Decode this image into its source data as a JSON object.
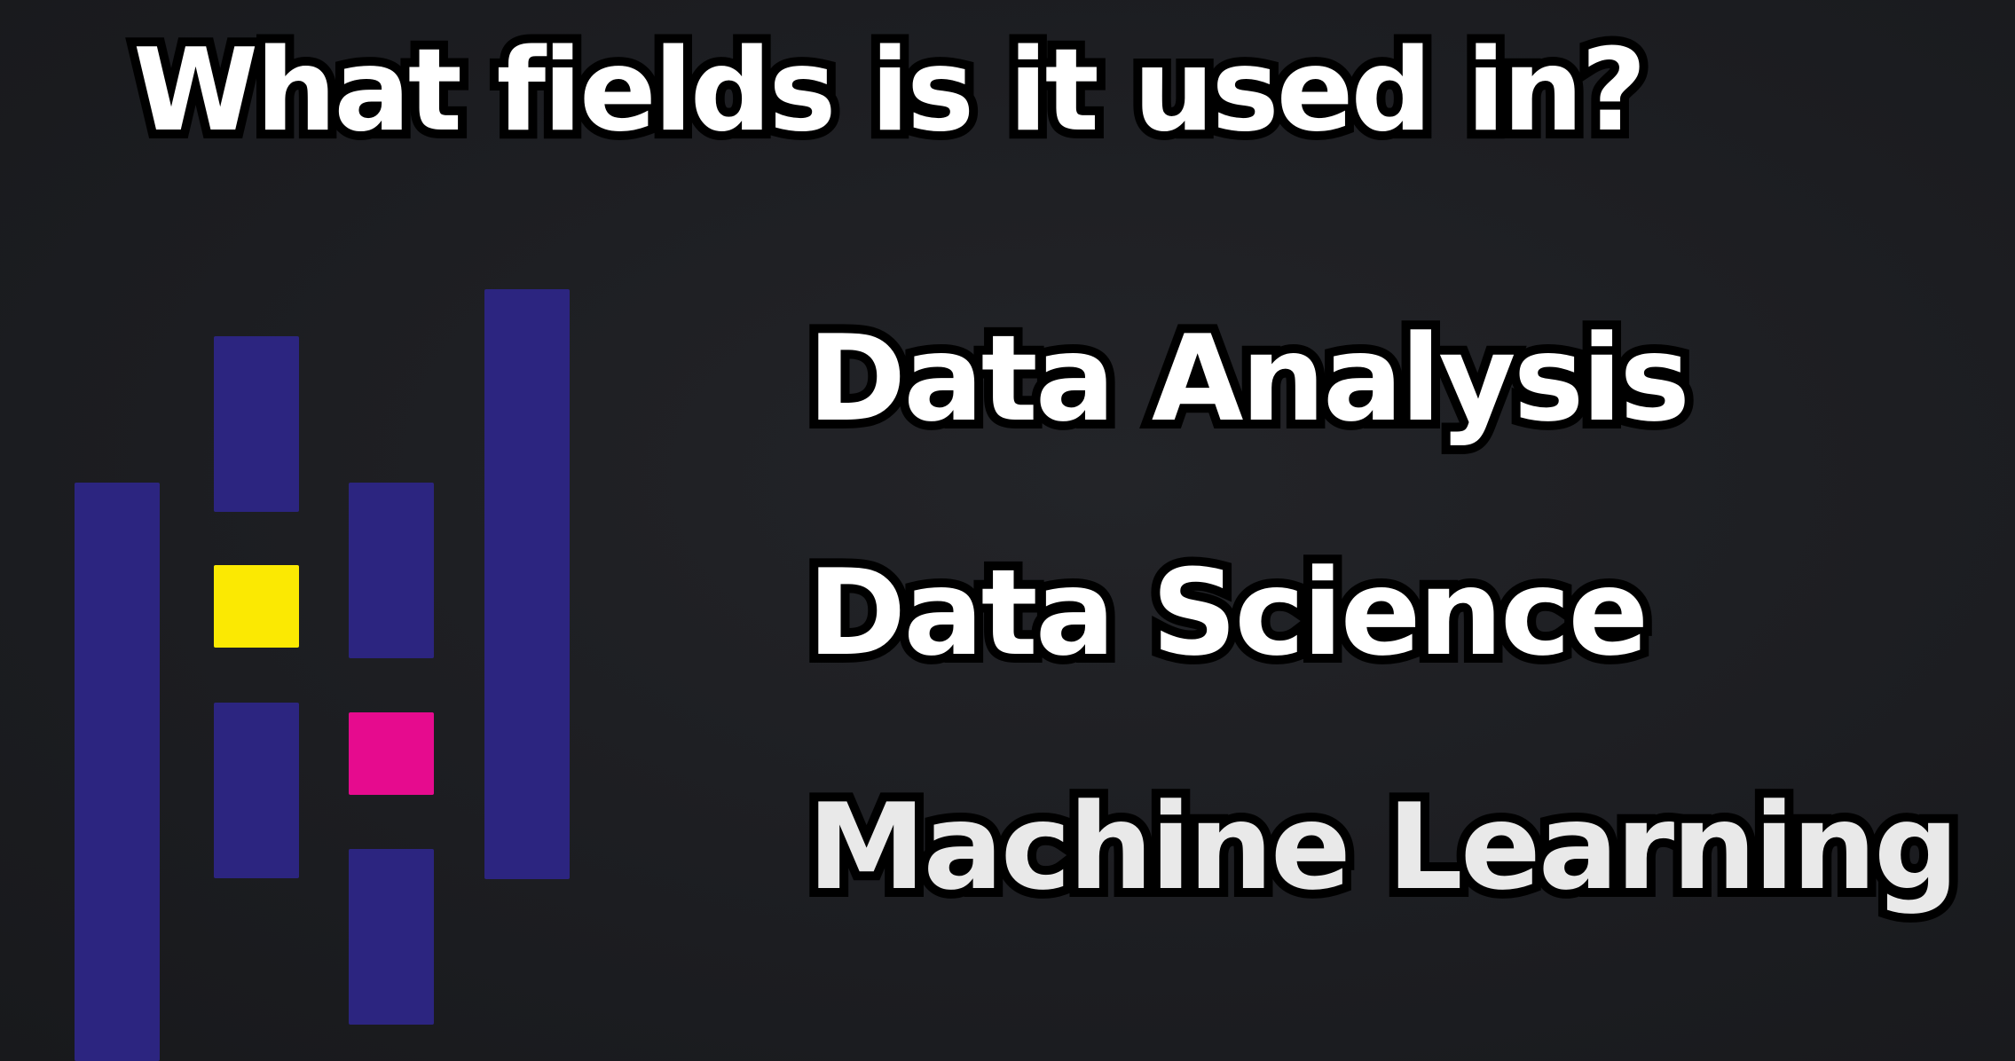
{
  "title": "What fields is it used in?",
  "fields": [
    "Data Analysis",
    "Data Science",
    "Machine Learning"
  ],
  "logo": {
    "name": "pandas-logo",
    "colors": {
      "bars": "#2c2580",
      "yellow": "#fbe902",
      "pink": "#e60b8e"
    }
  }
}
